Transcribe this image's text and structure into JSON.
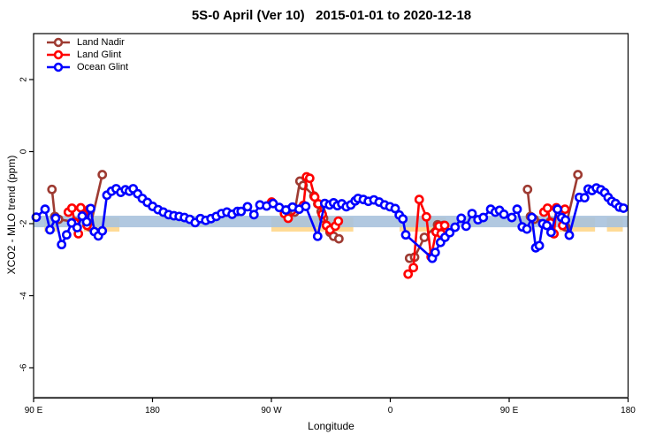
{
  "title": "5S-0 April (Ver 10)   2015-01-01 to 2020-12-18",
  "legend": {
    "items": [
      {
        "label": "Land Nadir",
        "color": "#9e3b32"
      },
      {
        "label": "Land Glint",
        "color": "#ff0000"
      },
      {
        "label": "Ocean Glint",
        "color": "#0000ff"
      }
    ]
  },
  "chart_data": {
    "type": "line",
    "title": "5S-0 April (Ver 10)   2015-01-01 to 2020-12-18",
    "xlabel": "Longitude",
    "ylabel": "XCO2 - MLO trend (ppm)",
    "x_axis": {
      "range": [
        90,
        540
      ],
      "ticks": [
        90,
        180,
        270,
        360,
        450,
        540
      ],
      "tick_labels": [
        "90 E",
        "180",
        "90 W",
        "0",
        "90 E",
        "180"
      ]
    },
    "y_axis": {
      "range": [
        -6.9,
        3.3
      ],
      "ticks": [
        2,
        0,
        -2,
        -4,
        -6
      ],
      "tick_labels": [
        "2",
        "0",
        "-2",
        "-4",
        "-6"
      ]
    },
    "grid": false,
    "legend_position": "top-left-inside",
    "bands": [
      {
        "name": "land-reference-band",
        "color": "#ffd382",
        "opacity": 0.85,
        "value_from": -1.83,
        "value_to": -2.22,
        "segments": [
          [
            98,
            109
          ],
          [
            128,
            155
          ],
          [
            270,
            332
          ],
          [
            367,
            402
          ],
          [
            458,
            469
          ],
          [
            488,
            515
          ],
          [
            524,
            536
          ]
        ]
      },
      {
        "name": "ocean-reference-band",
        "color": "#a8c2dd",
        "opacity": 0.9,
        "value_from": -1.78,
        "value_to": -2.1,
        "segments": [
          [
            90,
            540
          ]
        ]
      }
    ],
    "series": [
      {
        "name": "Land Nadir",
        "color": "#9e3b32",
        "points": [
          [
            103.9,
            -1.05
          ],
          [
            106.1,
            -1.8
          ],
          [
            108.9,
            -1.88
          ],
          [
            121,
            -1.95
          ],
          [
            129,
            -1.72
          ],
          [
            132.8,
            -2.09
          ],
          [
            142,
            -0.64
          ],
          [
            284.3,
            -1.6
          ],
          [
            287.6,
            -1.68
          ],
          [
            291.6,
            -0.82
          ],
          [
            294,
            -0.94
          ],
          [
            302.2,
            -1.23
          ],
          [
            305.1,
            -1.45
          ],
          [
            307.7,
            -1.66
          ],
          [
            309.5,
            -1.85
          ],
          [
            311.7,
            -2.05
          ],
          [
            314.4,
            -2.24
          ],
          [
            317.1,
            -2.35
          ],
          [
            321.1,
            -2.42
          ],
          [
            374.6,
            -2.96
          ],
          [
            378.4,
            -2.93
          ],
          [
            385.8,
            -2.38
          ],
          [
            395.8,
            -2.03
          ],
          [
            398,
            -2.09
          ],
          [
            400.3,
            -2.05
          ],
          [
            463.9,
            -1.05
          ],
          [
            466.1,
            -1.8
          ],
          [
            468.9,
            -1.88
          ],
          [
            481,
            -1.95
          ],
          [
            489,
            -1.72
          ],
          [
            492.8,
            -2.09
          ],
          [
            502,
            -0.64
          ]
        ]
      },
      {
        "name": "Land Glint",
        "color": "#ff0000",
        "points": [
          [
            116.3,
            -1.68
          ],
          [
            119,
            -1.57
          ],
          [
            121.3,
            -1.98
          ],
          [
            123.9,
            -2.28
          ],
          [
            125.7,
            -1.56
          ],
          [
            128,
            -1.74
          ],
          [
            130.5,
            -2.05
          ],
          [
            132.2,
            -1.6
          ],
          [
            270.2,
            -1.4
          ],
          [
            279.9,
            -1.72
          ],
          [
            282.7,
            -1.85
          ],
          [
            294.3,
            -1.49
          ],
          [
            296.6,
            -0.7
          ],
          [
            299,
            -0.74
          ],
          [
            302.8,
            -1.26
          ],
          [
            305.5,
            -1.45
          ],
          [
            308.5,
            -1.74
          ],
          [
            311.7,
            -2.05
          ],
          [
            314.4,
            -2.17
          ],
          [
            318.4,
            -2.07
          ],
          [
            320.7,
            -1.93
          ],
          [
            373.5,
            -3.4
          ],
          [
            377.5,
            -3.22
          ],
          [
            381.9,
            -1.33
          ],
          [
            387.3,
            -1.81
          ],
          [
            390.9,
            -2.92
          ],
          [
            394.7,
            -2.23
          ],
          [
            396.9,
            -2.07
          ],
          [
            398.5,
            -2.28
          ],
          [
            401.2,
            -2.05
          ],
          [
            476.3,
            -1.68
          ],
          [
            479,
            -1.57
          ],
          [
            481.3,
            -1.98
          ],
          [
            483.9,
            -2.28
          ],
          [
            485.7,
            -1.56
          ],
          [
            488,
            -1.74
          ],
          [
            490.5,
            -2.05
          ],
          [
            492.2,
            -1.6
          ]
        ]
      },
      {
        "name": "Ocean Glint",
        "color": "#0000ff",
        "points": [
          [
            92,
            -1.82
          ],
          [
            98.7,
            -1.6
          ],
          [
            102.4,
            -2.17
          ],
          [
            106.7,
            -1.85
          ],
          [
            111.2,
            -2.58
          ],
          [
            115,
            -2.31
          ],
          [
            118.8,
            -1.98
          ],
          [
            123,
            -2.11
          ],
          [
            126.8,
            -1.79
          ],
          [
            130.2,
            -1.95
          ],
          [
            133.2,
            -1.58
          ],
          [
            136,
            -2.22
          ],
          [
            139,
            -2.34
          ],
          [
            142,
            -2.2
          ],
          [
            145.5,
            -1.21
          ],
          [
            149,
            -1.1
          ],
          [
            152.5,
            -1.03
          ],
          [
            156,
            -1.13
          ],
          [
            159.5,
            -1.06
          ],
          [
            162.5,
            -1.1
          ],
          [
            165.4,
            -1.03
          ],
          [
            168.8,
            -1.17
          ],
          [
            172.3,
            -1.3
          ],
          [
            176.1,
            -1.41
          ],
          [
            180.1,
            -1.52
          ],
          [
            184.2,
            -1.61
          ],
          [
            188.2,
            -1.68
          ],
          [
            192.2,
            -1.75
          ],
          [
            196.2,
            -1.78
          ],
          [
            200.2,
            -1.8
          ],
          [
            204.2,
            -1.83
          ],
          [
            208.2,
            -1.88
          ],
          [
            212.3,
            -1.97
          ],
          [
            216.3,
            -1.86
          ],
          [
            220.3,
            -1.91
          ],
          [
            224.3,
            -1.86
          ],
          [
            228.3,
            -1.8
          ],
          [
            232.3,
            -1.72
          ],
          [
            236.3,
            -1.68
          ],
          [
            240.3,
            -1.74
          ],
          [
            244.3,
            -1.66
          ],
          [
            247.1,
            -1.66
          ],
          [
            251.9,
            -1.53
          ],
          [
            256.8,
            -1.75
          ],
          [
            261.3,
            -1.48
          ],
          [
            266.4,
            -1.51
          ],
          [
            271.3,
            -1.44
          ],
          [
            276,
            -1.55
          ],
          [
            281,
            -1.62
          ],
          [
            286,
            -1.54
          ],
          [
            291,
            -1.6
          ],
          [
            296,
            -1.52
          ],
          [
            305,
            -2.35
          ],
          [
            310.4,
            -1.44
          ],
          [
            314,
            -1.48
          ],
          [
            317.1,
            -1.42
          ],
          [
            320,
            -1.5
          ],
          [
            323.3,
            -1.45
          ],
          [
            326.7,
            -1.53
          ],
          [
            330.1,
            -1.48
          ],
          [
            333.4,
            -1.37
          ],
          [
            335.6,
            -1.3
          ],
          [
            339.6,
            -1.33
          ],
          [
            343.4,
            -1.38
          ],
          [
            347.6,
            -1.34
          ],
          [
            351.6,
            -1.4
          ],
          [
            355.7,
            -1.48
          ],
          [
            359.7,
            -1.53
          ],
          [
            363.7,
            -1.58
          ],
          [
            366.8,
            -1.76
          ],
          [
            369.5,
            -1.87
          ],
          [
            371.7,
            -2.31
          ],
          [
            391.8,
            -2.96
          ],
          [
            394,
            -2.8
          ],
          [
            398,
            -2.52
          ],
          [
            401.4,
            -2.38
          ],
          [
            405,
            -2.25
          ],
          [
            409,
            -2.1
          ],
          [
            413.7,
            -1.85
          ],
          [
            417.4,
            -2.07
          ],
          [
            421.9,
            -1.72
          ],
          [
            426.4,
            -1.89
          ],
          [
            430.4,
            -1.83
          ],
          [
            436,
            -1.6
          ],
          [
            439.5,
            -1.68
          ],
          [
            442.7,
            -1.63
          ],
          [
            446,
            -1.74
          ],
          [
            452,
            -1.83
          ],
          [
            456,
            -1.6
          ],
          [
            459.9,
            -2.09
          ],
          [
            463.4,
            -2.15
          ],
          [
            467.2,
            -1.83
          ],
          [
            470.1,
            -2.67
          ],
          [
            472.8,
            -2.61
          ],
          [
            475.4,
            -2
          ],
          [
            478.5,
            -2.05
          ],
          [
            481.7,
            -2.24
          ],
          [
            486.6,
            -1.6
          ],
          [
            489.7,
            -1.83
          ],
          [
            492.6,
            -1.9
          ],
          [
            495.5,
            -2.32
          ],
          [
            503.1,
            -1.27
          ],
          [
            507.1,
            -1.28
          ],
          [
            509.8,
            -1.04
          ],
          [
            512.7,
            -1.08
          ],
          [
            516,
            -1.01
          ],
          [
            519.4,
            -1.06
          ],
          [
            522.3,
            -1.14
          ],
          [
            524.9,
            -1.27
          ],
          [
            527.6,
            -1.38
          ],
          [
            530.5,
            -1.44
          ],
          [
            533.4,
            -1.54
          ],
          [
            536.5,
            -1.57
          ]
        ]
      }
    ]
  }
}
